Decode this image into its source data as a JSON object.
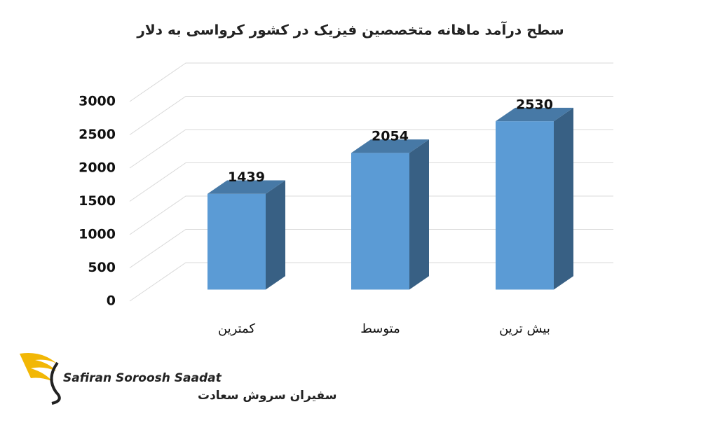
{
  "chart_data": {
    "type": "bar3d",
    "title": "سطح درآمد ماهانه متخصصین فیزیک در کشور کرواسی به دلار",
    "categories": [
      "کمترین",
      "متوسط",
      "بیش ترین"
    ],
    "values": [
      1439,
      2054,
      2530
    ],
    "color": "#5b9bd5",
    "ylim": [
      0,
      3000
    ],
    "yticks": [
      0,
      500,
      1000,
      1500,
      2000,
      2500,
      3000
    ],
    "grid": true
  },
  "logo": {
    "latin": "Safiran Soroosh Saadat",
    "persian": "سفیران سروش سعادت"
  }
}
